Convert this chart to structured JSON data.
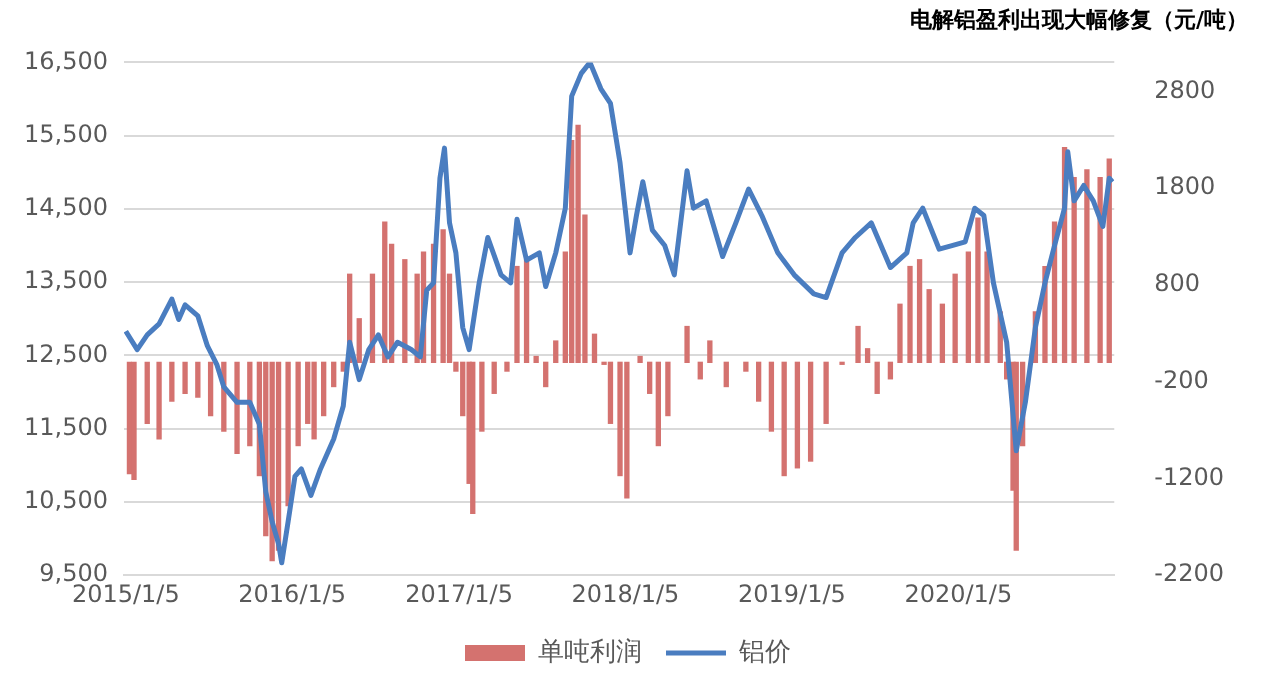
{
  "chart_data": {
    "type": "bar",
    "title": "电解铝盈利出现大幅修复（元/吨）",
    "legend": "bottom",
    "grid": "y",
    "xlim": [
      "2015-01-01",
      "2020-12-12"
    ],
    "xticks": [
      {
        "value": "2015-01-05",
        "label": "2015/1/5"
      },
      {
        "value": "2016-01-05",
        "label": "2016/1/5"
      },
      {
        "value": "2017-01-05",
        "label": "2017/1/5"
      },
      {
        "value": "2018-01-05",
        "label": "2018/1/5"
      },
      {
        "value": "2019-01-05",
        "label": "2019/1/5"
      },
      {
        "value": "2020-01-05",
        "label": "2020/1/5"
      }
    ],
    "ylim": [
      9500,
      16500
    ],
    "yticks": [
      {
        "value": 9500,
        "label": "9,500"
      },
      {
        "value": 10500,
        "label": "10,500"
      },
      {
        "value": 11500,
        "label": "11,500"
      },
      {
        "value": 12500,
        "label": "12,500"
      },
      {
        "value": 13500,
        "label": "13,500"
      },
      {
        "value": 14500,
        "label": "14,500"
      },
      {
        "value": 15500,
        "label": "15,500"
      },
      {
        "value": 16500,
        "label": "16,500"
      }
    ],
    "y2lim": [
      -2200,
      3100
    ],
    "y2ticks": [
      -2200,
      -1200,
      -200,
      800,
      1800,
      2800
    ],
    "series": [
      {
        "name": "单吨利润",
        "axis": "y2",
        "color": "#d4726f",
        "x": [
          "2015-01-13",
          "2015-01-23",
          "2015-02-21",
          "2015-03-19",
          "2015-04-16",
          "2015-05-15",
          "2015-06-12",
          "2015-07-10",
          "2015-08-08",
          "2015-09-06",
          "2015-10-04",
          "2015-10-25",
          "2015-11-08",
          "2015-11-22",
          "2015-12-06",
          "2015-12-27",
          "2016-01-18",
          "2016-02-08",
          "2016-02-22",
          "2016-03-14",
          "2016-04-05",
          "2016-04-26",
          "2016-05-10",
          "2016-05-31",
          "2016-06-29",
          "2016-07-26",
          "2016-08-10",
          "2016-09-08",
          "2016-10-05",
          "2016-10-19",
          "2016-11-10",
          "2016-12-01",
          "2016-12-15",
          "2016-12-29",
          "2017-01-13",
          "2017-01-27",
          "2017-02-04",
          "2017-02-24",
          "2017-03-23",
          "2017-04-20",
          "2017-05-12",
          "2017-06-02",
          "2017-06-23",
          "2017-07-14",
          "2017-08-05",
          "2017-08-26",
          "2017-09-09",
          "2017-09-23",
          "2017-10-08",
          "2017-10-29",
          "2017-11-19",
          "2017-12-03",
          "2017-12-24",
          "2018-01-08",
          "2018-02-06",
          "2018-02-27",
          "2018-03-18",
          "2018-04-08",
          "2018-05-20",
          "2018-06-18",
          "2018-07-09",
          "2018-08-14",
          "2018-09-26",
          "2018-10-24",
          "2018-11-21",
          "2018-12-19",
          "2019-01-17",
          "2019-02-15",
          "2019-03-21",
          "2019-04-25",
          "2019-05-30",
          "2019-06-20",
          "2019-07-11",
          "2019-08-09",
          "2019-08-30",
          "2019-09-21",
          "2019-10-12",
          "2019-11-02",
          "2019-12-01",
          "2019-12-29",
          "2020-01-27",
          "2020-02-17",
          "2020-03-08",
          "2020-04-06",
          "2020-04-20",
          "2020-05-04",
          "2020-05-11",
          "2020-05-25",
          "2020-06-22",
          "2020-07-13",
          "2020-08-03",
          "2020-08-25",
          "2020-09-15",
          "2020-10-13",
          "2020-11-11",
          "2020-12-01"
        ],
        "values": [
          -1150,
          -1210,
          -630,
          -790,
          -400,
          -320,
          -360,
          -550,
          -710,
          -940,
          -860,
          -1170,
          -1790,
          -2050,
          -1940,
          -1480,
          -860,
          -630,
          -790,
          -550,
          -250,
          -90,
          910,
          450,
          910,
          1450,
          1220,
          1060,
          910,
          1140,
          1220,
          1370,
          910,
          -90,
          -550,
          -1250,
          -1560,
          -710,
          -320,
          -90,
          990,
          1060,
          60,
          -250,
          220,
          1140,
          2290,
          2450,
          1520,
          290,
          -20,
          -630,
          -1170,
          -1400,
          60,
          -320,
          -860,
          -550,
          370,
          -170,
          220,
          -250,
          -90,
          -400,
          -710,
          -1170,
          -1090,
          -1020,
          -630,
          -20,
          370,
          140,
          -320,
          -170,
          600,
          990,
          1060,
          750,
          600,
          910,
          1140,
          1490,
          1140,
          520,
          -170,
          -1320,
          -1940,
          -860,
          520,
          990,
          1450,
          2220,
          1910,
          1990,
          1910,
          2100
        ]
      },
      {
        "name": "铝价",
        "type": "line",
        "color": "#4a7dc0",
        "marker": "none",
        "x": [
          "2015-01-05",
          "2015-01-30",
          "2015-02-21",
          "2015-03-19",
          "2015-04-16",
          "2015-05-01",
          "2015-05-15",
          "2015-06-12",
          "2015-07-03",
          "2015-07-24",
          "2015-08-08",
          "2015-09-06",
          "2015-10-04",
          "2015-10-25",
          "2015-11-08",
          "2015-11-22",
          "2015-12-06",
          "2015-12-13",
          "2015-12-27",
          "2016-01-11",
          "2016-01-25",
          "2016-02-15",
          "2016-03-07",
          "2016-04-05",
          "2016-04-26",
          "2016-05-10",
          "2016-05-31",
          "2016-06-21",
          "2016-07-12",
          "2016-08-02",
          "2016-08-23",
          "2016-09-22",
          "2016-10-12",
          "2016-10-26",
          "2016-11-10",
          "2016-11-24",
          "2016-12-04",
          "2016-12-15",
          "2016-12-29",
          "2017-01-13",
          "2017-01-27",
          "2017-02-18",
          "2017-03-09",
          "2017-04-07",
          "2017-04-28",
          "2017-05-12",
          "2017-06-02",
          "2017-06-30",
          "2017-07-14",
          "2017-08-05",
          "2017-08-26",
          "2017-09-09",
          "2017-09-30",
          "2017-10-19",
          "2017-11-12",
          "2017-12-03",
          "2017-12-24",
          "2018-01-15",
          "2018-01-29",
          "2018-02-12",
          "2018-03-05",
          "2018-04-01",
          "2018-04-22",
          "2018-05-20",
          "2018-06-03",
          "2018-07-01",
          "2018-08-06",
          "2018-09-04",
          "2018-10-02",
          "2018-10-31",
          "2018-12-05",
          "2019-01-10",
          "2019-02-22",
          "2019-03-21",
          "2019-04-25",
          "2019-05-24",
          "2019-06-28",
          "2019-08-09",
          "2019-09-14",
          "2019-09-28",
          "2019-10-19",
          "2019-11-24",
          "2019-12-22",
          "2020-01-20",
          "2020-02-10",
          "2020-03-01",
          "2020-03-22",
          "2020-04-20",
          "2020-05-11",
          "2020-05-31",
          "2020-06-22",
          "2020-07-13",
          "2020-08-03",
          "2020-08-25",
          "2020-09-01",
          "2020-09-15",
          "2020-10-06",
          "2020-10-27",
          "2020-11-17",
          "2020-12-01",
          "2020-12-08"
        ],
        "values": [
          12830,
          12580,
          12780,
          12930,
          13270,
          12990,
          13190,
          13040,
          12630,
          12370,
          12070,
          11860,
          11860,
          11560,
          10640,
          10230,
          9930,
          9670,
          10230,
          10850,
          10950,
          10590,
          10950,
          11360,
          11810,
          12680,
          12170,
          12580,
          12780,
          12480,
          12680,
          12580,
          12480,
          13390,
          13490,
          14920,
          15330,
          14310,
          13900,
          12880,
          12580,
          13490,
          14110,
          13600,
          13490,
          14360,
          13800,
          13900,
          13440,
          13900,
          14510,
          16040,
          16350,
          16500,
          16140,
          15940,
          15130,
          13900,
          14410,
          14870,
          14210,
          14000,
          13600,
          15020,
          14510,
          14610,
          13850,
          14310,
          14770,
          14410,
          13900,
          13600,
          13340,
          13290,
          13900,
          14110,
          14310,
          13700,
          13900,
          14310,
          14510,
          13950,
          14000,
          14050,
          14510,
          14410,
          13490,
          12680,
          11200,
          11860,
          12880,
          13490,
          14000,
          14510,
          15280,
          14610,
          14820,
          14610,
          14260,
          14920,
          14870
        ]
      }
    ]
  }
}
